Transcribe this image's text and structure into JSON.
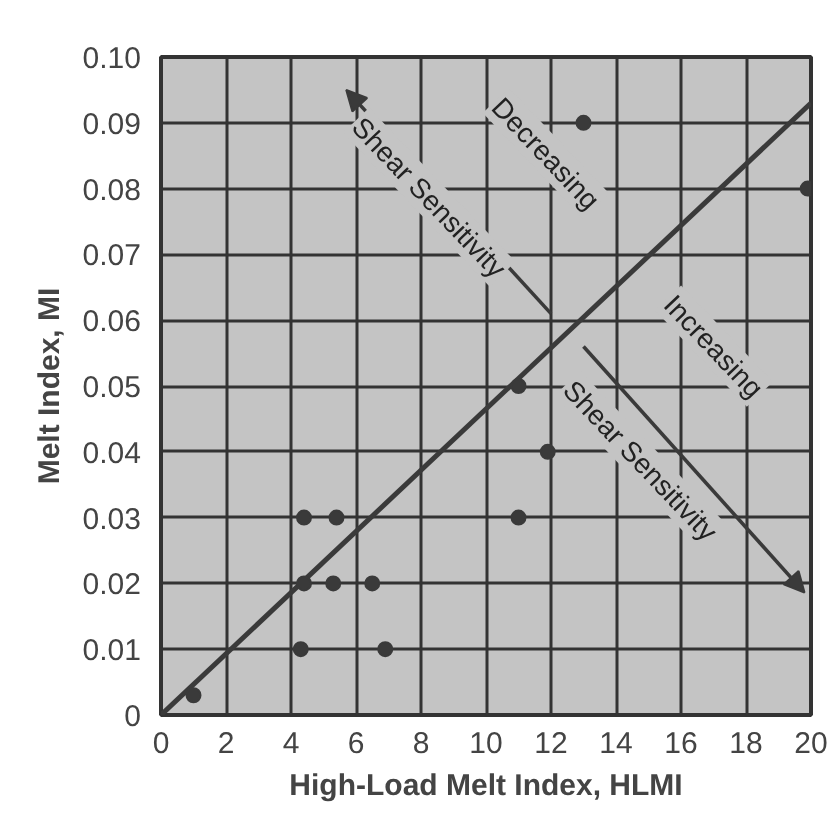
{
  "chart_data": {
    "type": "scatter",
    "xlabel": "High-Load Melt Index, HLMI",
    "ylabel": "Melt Index, MI",
    "xlim": [
      0,
      20
    ],
    "ylim": [
      0,
      0.1
    ],
    "xticks": [
      0,
      2,
      4,
      6,
      8,
      10,
      12,
      14,
      16,
      18,
      20
    ],
    "yticks": [
      {
        "value": 0,
        "label": "0"
      },
      {
        "value": 0.01,
        "label": "0.01"
      },
      {
        "value": 0.02,
        "label": "0.02"
      },
      {
        "value": 0.03,
        "label": "0.03"
      },
      {
        "value": 0.04,
        "label": "0.04"
      },
      {
        "value": 0.05,
        "label": "0.05"
      },
      {
        "value": 0.06,
        "label": "0.06"
      },
      {
        "value": 0.07,
        "label": "0.07"
      },
      {
        "value": 0.08,
        "label": "0.08"
      },
      {
        "value": 0.09,
        "label": "0.09"
      },
      {
        "value": 0.1,
        "label": "0.10"
      }
    ],
    "grid": true,
    "series": [
      {
        "type": "line",
        "color": "#3a3a3a",
        "marker": "none",
        "x": [
          0,
          20
        ],
        "values": [
          0,
          0.093
        ]
      },
      {
        "color": "#3a3a3a",
        "marker": "circle",
        "x": [
          1.0,
          4.3,
          6.9,
          4.4,
          5.3,
          6.5,
          4.4,
          5.4,
          11.0,
          11.9,
          11.0,
          13.0,
          19.9
        ],
        "values": [
          0.003,
          0.01,
          0.01,
          0.02,
          0.02,
          0.02,
          0.03,
          0.03,
          0.03,
          0.04,
          0.05,
          0.09,
          0.08
        ]
      }
    ],
    "annotations": [
      "Shear Sensitivity",
      "Decreasing",
      "Increasing",
      "Shear Sensitivity"
    ]
  }
}
